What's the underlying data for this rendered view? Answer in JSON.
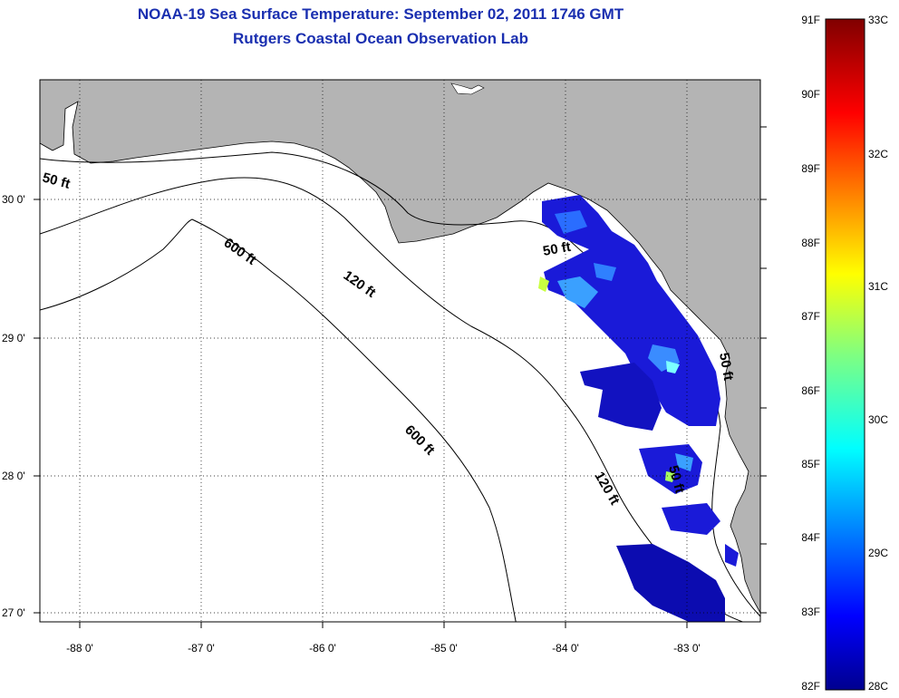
{
  "title": {
    "line1": "NOAA-19 Sea Surface Temperature:  September 02, 2011 1746 GMT",
    "line2": "Rutgers Coastal Ocean Observation Lab"
  },
  "axes": {
    "lat_ticks": [
      "30 0'",
      "29 0'",
      "28 0'",
      "27 0'"
    ],
    "lon_ticks": [
      "-88 0'",
      "-87 0'",
      "-86 0'",
      "-85 0'",
      "-84 0'",
      "-83 0'"
    ]
  },
  "contours": {
    "labels": [
      "50 ft",
      "600 ft",
      "120 ft",
      "50 ft",
      "600 ft",
      "120 ft",
      "50 ft",
      "50 ft"
    ]
  },
  "colorbar": {
    "fahrenheit": [
      "91F",
      "90F",
      "89F",
      "88F",
      "87F",
      "86F",
      "85F",
      "84F",
      "83F",
      "82F"
    ],
    "celsius": [
      "33C",
      "32C",
      "31C",
      "30C",
      "29C",
      "28C"
    ]
  },
  "colors": {
    "title": "#1a2fb0",
    "land": "#b4b4b4",
    "water": "#ffffff",
    "colormap": [
      "#00008f",
      "#0000ff",
      "#0080ff",
      "#00ffff",
      "#80ff80",
      "#ffff00",
      "#ff8000",
      "#ff0000",
      "#800000"
    ]
  }
}
